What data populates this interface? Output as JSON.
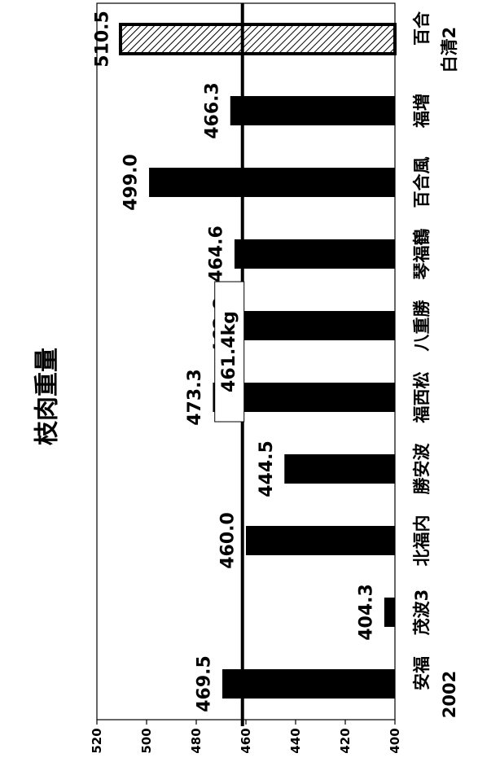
{
  "chart_data": {
    "type": "bar",
    "orientation": "horizontal",
    "title": "枝肉重量",
    "categories": [
      "安福",
      "茂波3",
      "北福内",
      "勝安波",
      "福西松",
      "八重勝",
      "琴福鶴",
      "百合風",
      "福増",
      "百合"
    ],
    "category_sublabels": [
      "2002",
      "",
      "",
      "",
      "",
      "",
      "",
      "",
      "",
      "白清2"
    ],
    "values": [
      469.5,
      404.3,
      460.0,
      444.5,
      473.3,
      462.8,
      464.6,
      499.0,
      466.3,
      510.5
    ],
    "value_labels": [
      "469.5",
      "404.3",
      "460.0",
      "444.5",
      "473.3",
      "462.8",
      "464.6",
      "499.0",
      "466.3",
      "510.5"
    ],
    "highlighted_index": 9,
    "reference_line": {
      "value": 461.4,
      "label": "461.4kg"
    },
    "xlim": [
      400,
      520
    ],
    "ticks": [
      400,
      420,
      440,
      460,
      480,
      500,
      520
    ],
    "xlabel": "",
    "ylabel": "",
    "grid": false,
    "colors": {
      "bar": "#000000",
      "highlight_fill": "#ffffff",
      "line": "#000000"
    }
  }
}
